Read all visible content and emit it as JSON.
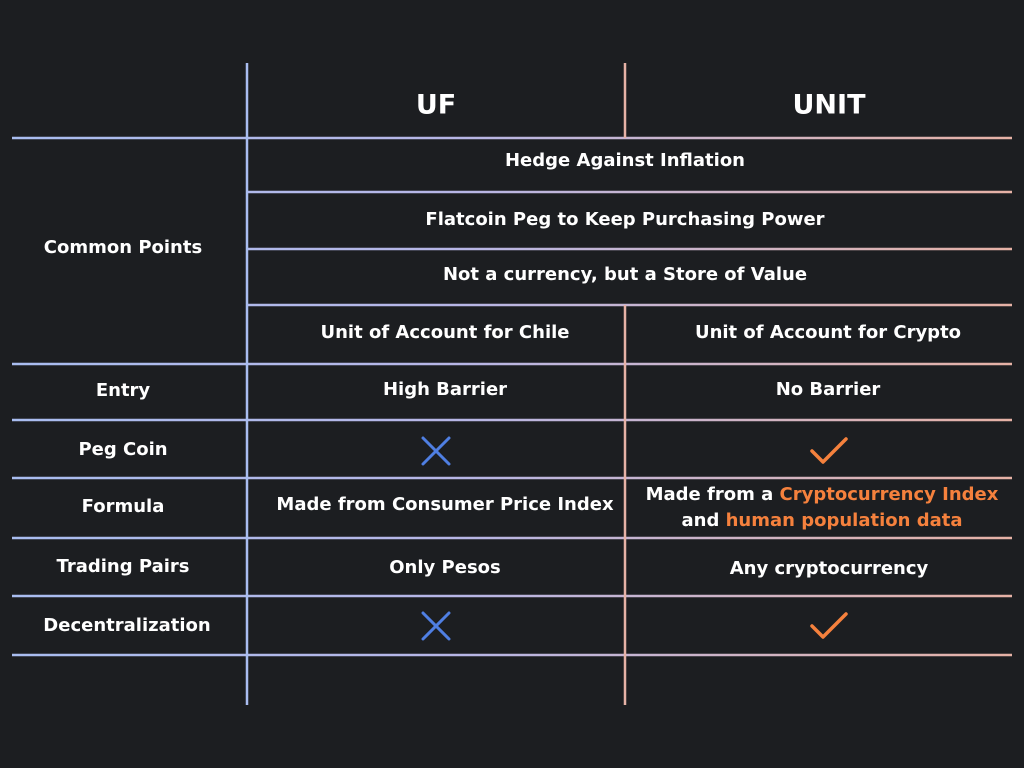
{
  "colors": {
    "background": "#1c1e21",
    "uf_accent": "#a9bdf0",
    "unit_accent": "#e6b2a6",
    "cross": "#4f7fe3",
    "check": "#f5813d",
    "highlight": "#f5813d"
  },
  "header": {
    "col_uf": "UF",
    "col_unit": "UNIT"
  },
  "common": {
    "label": "Common Points",
    "rows": [
      "Hedge Against Inflation",
      "Flatcoin Peg to Keep Purchasing Power",
      "Not a currency, but a Store of Value"
    ],
    "uf_unit_of_account": "Unit of Account for Chile",
    "unit_unit_of_account": "Unit of Account for Crypto"
  },
  "entry": {
    "label": "Entry",
    "uf": "High Barrier",
    "unit": "No Barrier"
  },
  "peg_coin": {
    "label": "Peg Coin",
    "uf_icon": "cross-icon",
    "unit_icon": "check-icon"
  },
  "formula": {
    "label": "Formula",
    "uf": "Made from Consumer Price Index",
    "unit_line1_prefix": "Made from a ",
    "unit_line1_highlight": "Cryptocurrency Index",
    "unit_line2_prefix": "and ",
    "unit_line2_highlight": "human population data"
  },
  "trading_pairs": {
    "label": "Trading Pairs",
    "uf": "Only Pesos",
    "unit": "Any cryptocurrency"
  },
  "decentralization": {
    "label": "Decentralization",
    "uf_icon": "cross-icon",
    "unit_icon": "check-icon"
  }
}
